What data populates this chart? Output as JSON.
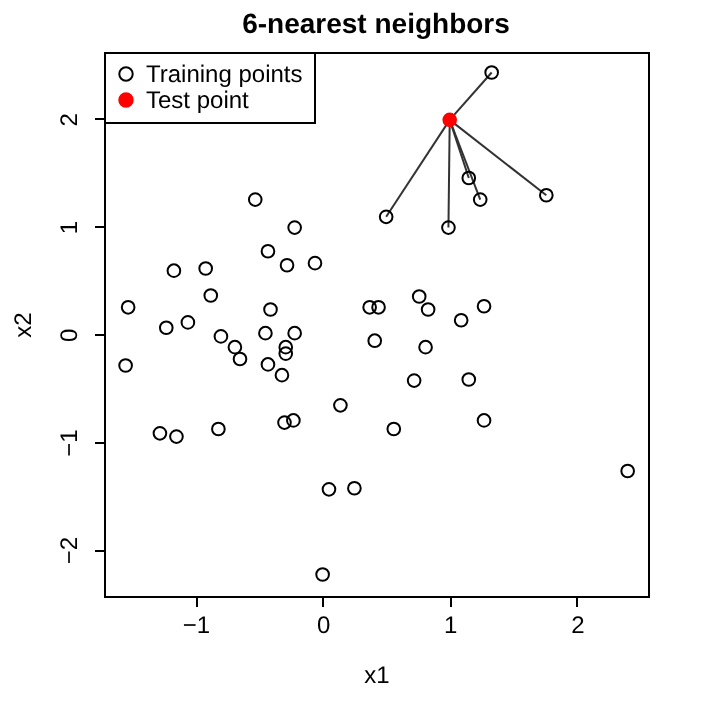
{
  "chart_data": {
    "type": "scatter",
    "title": "6-nearest neighbors",
    "xlabel": "x1",
    "ylabel": "x2",
    "xlim": [
      -1.72,
      2.56
    ],
    "ylim": [
      -2.43,
      2.62
    ],
    "xticks": [
      -1,
      0,
      1,
      2
    ],
    "yticks": [
      -2,
      -1,
      0,
      1,
      2
    ],
    "grid": false,
    "legend": "top left",
    "series": [
      {
        "name": "Training points",
        "color": "#000000",
        "marker": "circle",
        "x": [
          -0.53,
          -0.22,
          0.5,
          -0.43,
          -0.28,
          -0.06,
          -1.17,
          -0.92,
          -0.88,
          -1.53,
          -0.41,
          0.37,
          0.44,
          -1.23,
          -1.06,
          0.41,
          -0.8,
          -0.69,
          -0.65,
          -0.45,
          -0.22,
          -0.29,
          -0.29,
          -0.43,
          -0.32,
          -1.55,
          0.14,
          -0.3,
          -0.23,
          -1.28,
          -1.15,
          -0.82,
          0.05,
          0.25,
          0.0,
          1.33,
          1.15,
          1.24,
          1.76,
          0.99,
          0.76,
          0.83,
          1.09,
          1.27,
          0.81,
          0.72,
          1.15,
          0.56,
          1.27,
          2.4
        ],
        "values": [
          1.25,
          0.99,
          1.09,
          0.77,
          0.64,
          0.66,
          0.59,
          0.61,
          0.36,
          0.25,
          0.23,
          0.25,
          0.25,
          0.06,
          0.11,
          -0.06,
          -0.02,
          -0.12,
          -0.23,
          0.01,
          0.01,
          -0.12,
          -0.18,
          -0.28,
          -0.38,
          -0.29,
          -0.66,
          -0.82,
          -0.8,
          -0.92,
          -0.95,
          -0.88,
          -1.44,
          -1.43,
          -2.23,
          2.43,
          1.45,
          1.25,
          1.29,
          0.99,
          0.35,
          0.23,
          0.13,
          0.26,
          -0.12,
          -0.43,
          -0.42,
          -0.88,
          -0.8,
          -1.27
        ]
      },
      {
        "name": "Test point",
        "color": "#ff0000",
        "marker": "circle",
        "x": [
          1.0
        ],
        "values": [
          1.99
        ]
      },
      {
        "type": "line",
        "color": "#333333",
        "marker": "none",
        "x": [
          1.0,
          1.33
        ],
        "values": [
          1.99,
          2.43
        ]
      },
      {
        "type": "line",
        "color": "#333333",
        "marker": "none",
        "x": [
          1.0,
          1.15
        ],
        "values": [
          1.99,
          1.45
        ]
      },
      {
        "type": "line",
        "color": "#333333",
        "marker": "none",
        "x": [
          1.0,
          1.24
        ],
        "values": [
          1.99,
          1.25
        ]
      },
      {
        "type": "line",
        "color": "#333333",
        "marker": "none",
        "x": [
          1.0,
          1.76
        ],
        "values": [
          1.99,
          1.29
        ]
      },
      {
        "type": "line",
        "color": "#333333",
        "marker": "none",
        "x": [
          1.0,
          0.99
        ],
        "values": [
          1.99,
          0.99
        ]
      },
      {
        "type": "line",
        "color": "#333333",
        "marker": "none",
        "x": [
          1.0,
          0.5
        ],
        "values": [
          1.99,
          1.09
        ]
      }
    ]
  }
}
